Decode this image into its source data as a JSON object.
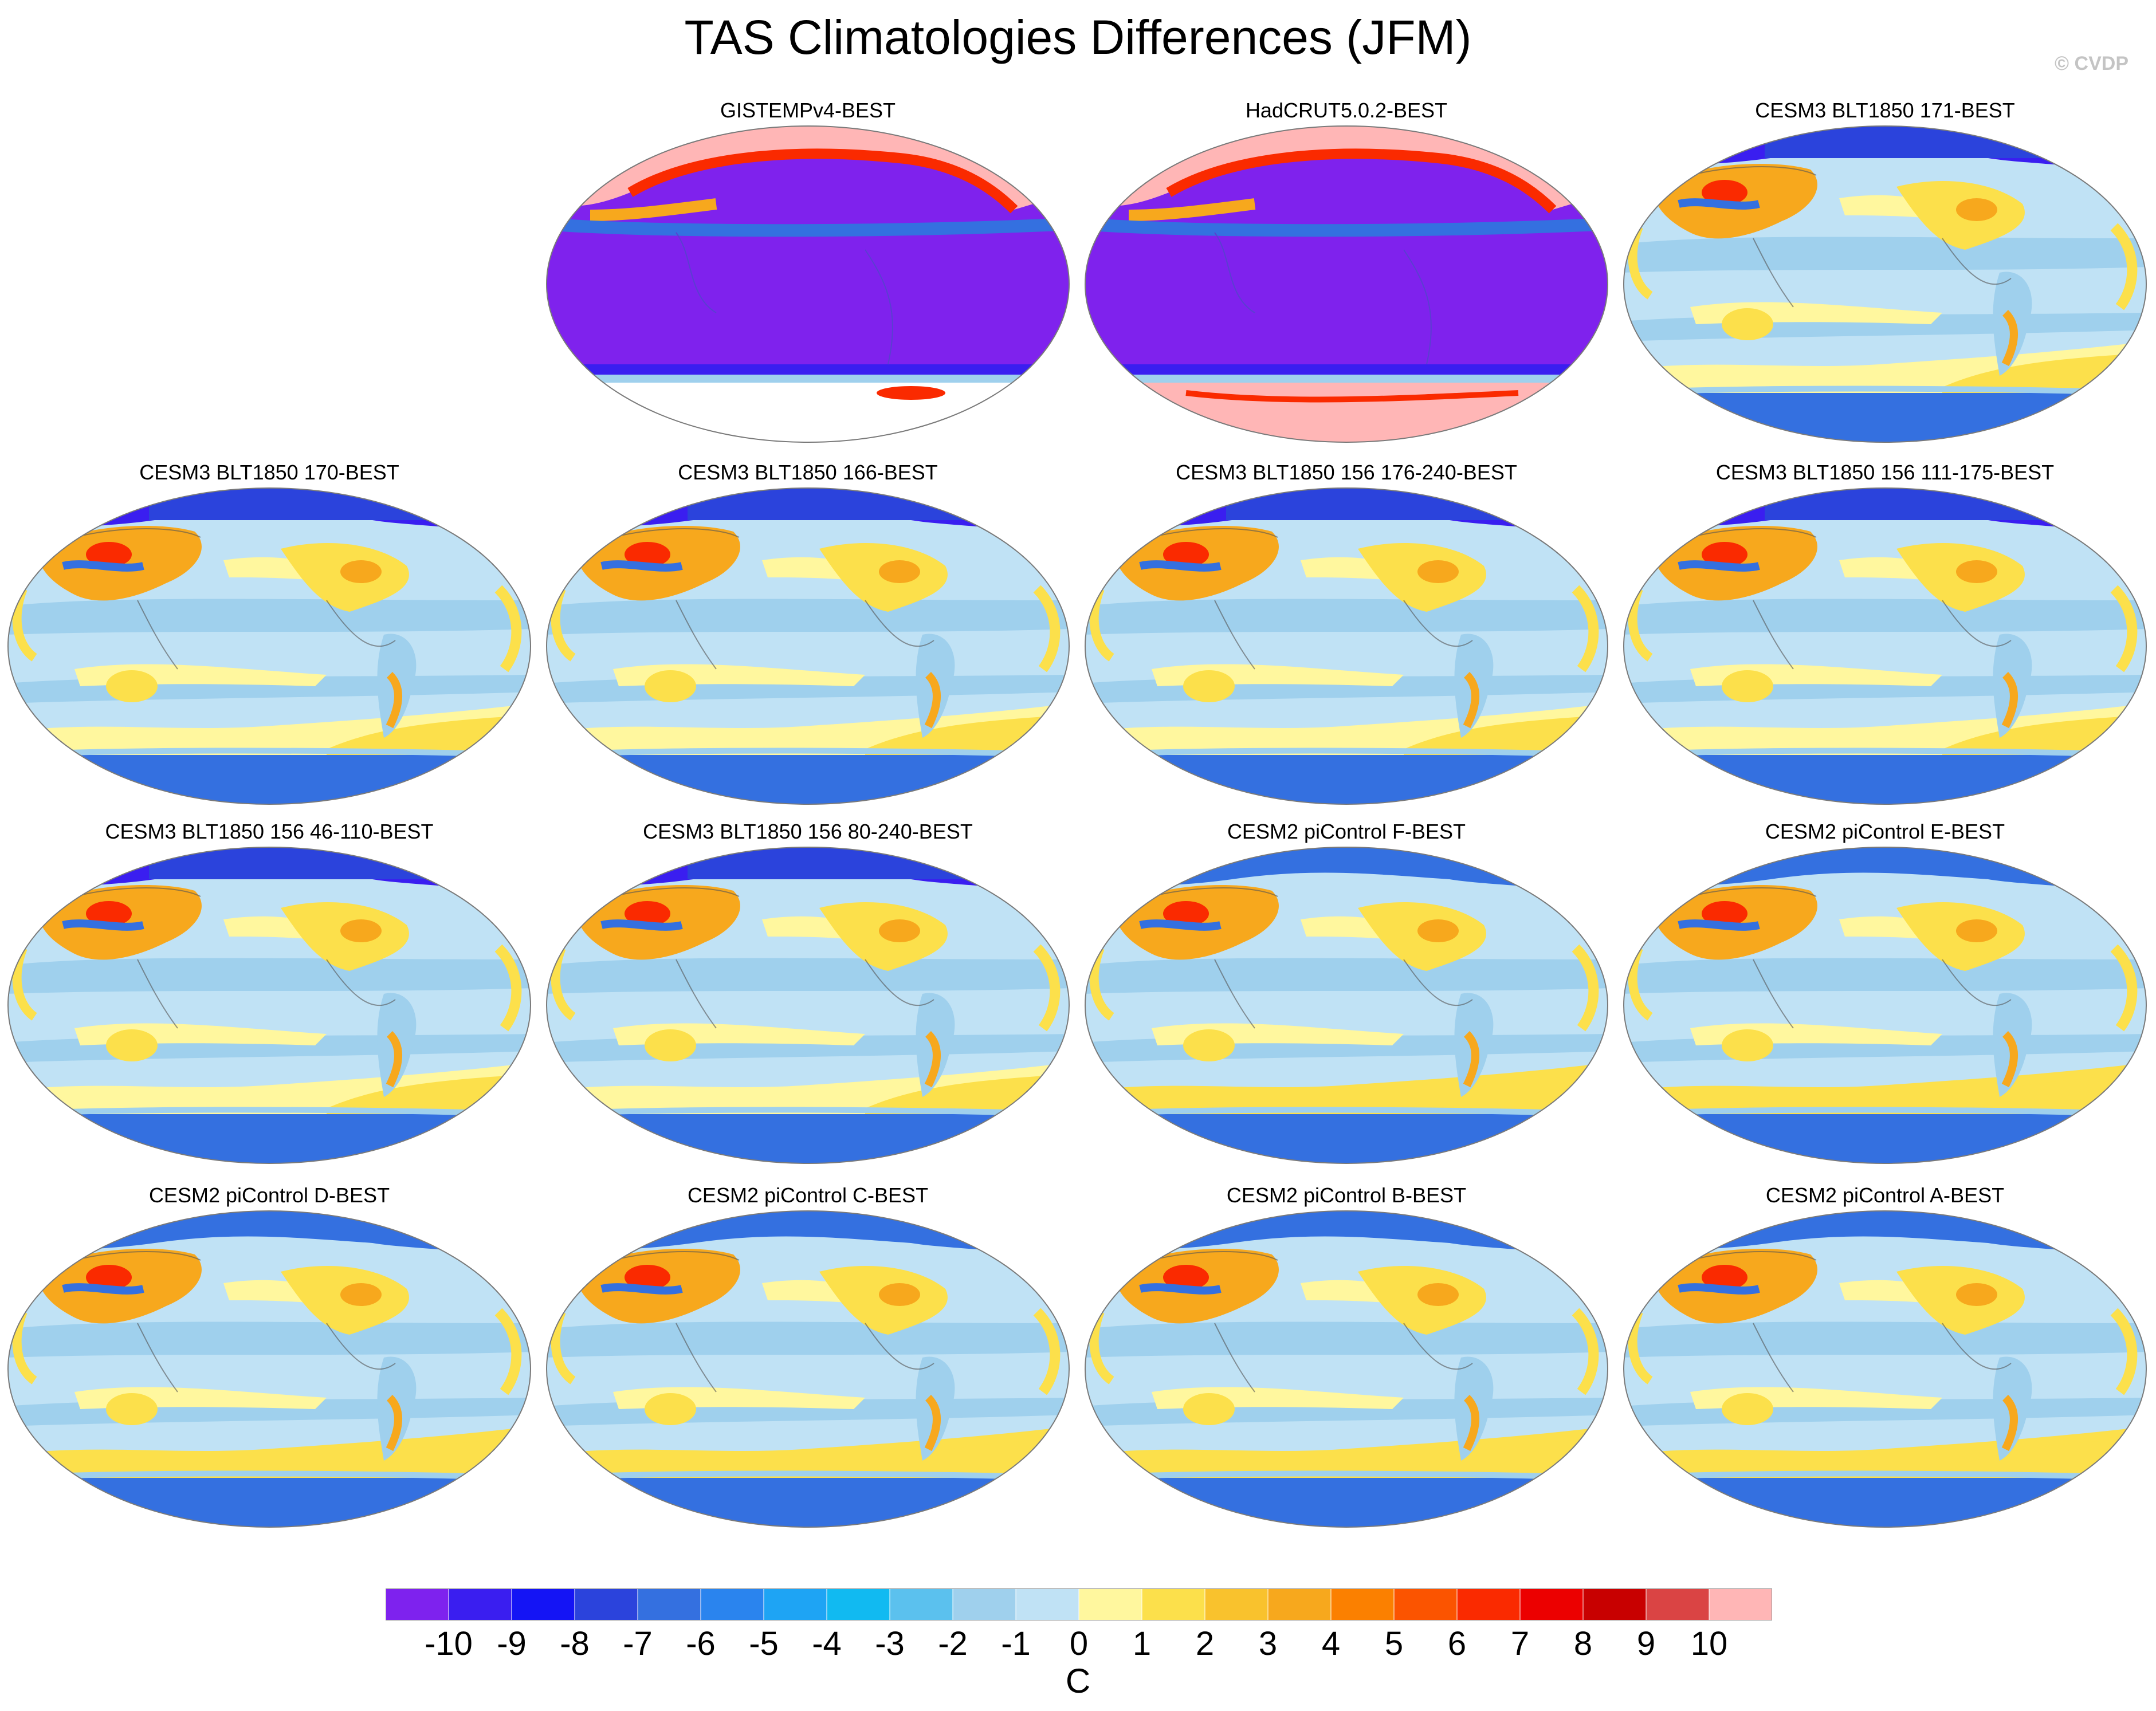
{
  "title": "TAS Climatologies Differences (JFM)",
  "watermark": "© CVDP",
  "panels": [
    {
      "title": "GISTEMPv4-BEST",
      "kind": "obs_gistemp"
    },
    {
      "title": "HadCRUT5.0.2-BEST",
      "kind": "obs_hadcrut"
    },
    {
      "title": "CESM3 BLT1850 171-BEST",
      "kind": "cesm3"
    },
    {
      "title": "CESM3 BLT1850 170-BEST",
      "kind": "cesm3"
    },
    {
      "title": "CESM3 BLT1850 166-BEST",
      "kind": "cesm3"
    },
    {
      "title": "CESM3 BLT1850 156 176-240-BEST",
      "kind": "cesm3"
    },
    {
      "title": "CESM3 BLT1850 156 111-175-BEST",
      "kind": "cesm3"
    },
    {
      "title": "CESM3 BLT1850 156 46-110-BEST",
      "kind": "cesm3"
    },
    {
      "title": "CESM3 BLT1850 156 80-240-BEST",
      "kind": "cesm3"
    },
    {
      "title": "CESM2 piControl F-BEST",
      "kind": "cesm2"
    },
    {
      "title": "CESM2 piControl E-BEST",
      "kind": "cesm2"
    },
    {
      "title": "CESM2 piControl D-BEST",
      "kind": "cesm2"
    },
    {
      "title": "CESM2 piControl C-BEST",
      "kind": "cesm2"
    },
    {
      "title": "CESM2 piControl B-BEST",
      "kind": "cesm2"
    },
    {
      "title": "CESM2 piControl A-BEST",
      "kind": "cesm2"
    }
  ],
  "colorbar": {
    "labels": [
      "-10",
      "-9",
      "-8",
      "-7",
      "-6",
      "-5",
      "-4",
      "-3",
      "-2",
      "-1",
      "0",
      "1",
      "2",
      "3",
      "4",
      "5",
      "6",
      "7",
      "8",
      "9",
      "10"
    ],
    "colors": [
      "#7e22ee",
      "#3a1ef0",
      "#1414f5",
      "#2b43dc",
      "#3470e0",
      "#2a84ee",
      "#1ea4f4",
      "#11baf1",
      "#5bc1ee",
      "#9fd0ed",
      "#c0e2f5",
      "#fff79e",
      "#fce04b",
      "#f9c22d",
      "#f7a81d",
      "#fb8000",
      "#fb5400",
      "#fa2a00",
      "#ec0000",
      "#c80000",
      "#da4444",
      "#ffb6b6"
    ],
    "unit": "C"
  },
  "palette": {
    "ocean_obs": "#7f22ed",
    "ice_obs": "#ffb6b6",
    "ocean_model": "#c0e2f5",
    "cool_band": "#9fd0ed",
    "warm_band": "#fff79e",
    "land_warm": "#fce04b",
    "land_hot": "#f7a81d",
    "hotspot": "#fa2a00",
    "arctic_cold": "#3470e0",
    "arctic_deep": "#3a1ef0",
    "coast": "#555555"
  }
}
